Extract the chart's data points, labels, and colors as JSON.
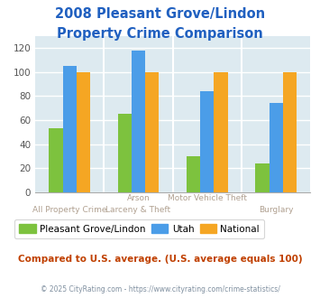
{
  "title_line1": "2008 Pleasant Grove/Lindon",
  "title_line2": "Property Crime Comparison",
  "cat_labels_top": [
    "",
    "Arson",
    "Motor Vehicle Theft",
    ""
  ],
  "cat_labels_bottom": [
    "All Property Crime",
    "Larceny & Theft",
    "",
    "Burglary"
  ],
  "pleasant_grove": [
    53,
    65,
    30,
    24
  ],
  "utah": [
    105,
    118,
    84,
    74
  ],
  "national": [
    100,
    100,
    100,
    100
  ],
  "colors": {
    "pleasant_grove": "#7dc23e",
    "utah": "#4b9de8",
    "national": "#f5a623"
  },
  "ylim": [
    0,
    130
  ],
  "yticks": [
    0,
    20,
    40,
    60,
    80,
    100,
    120
  ],
  "title_color": "#2060c0",
  "plot_bg": "#ddeaf0",
  "label_color": "#b0a090",
  "subtitle": "Compared to U.S. average. (U.S. average equals 100)",
  "subtitle_color": "#c04000",
  "footnote": "© 2025 CityRating.com - https://www.cityrating.com/crime-statistics/",
  "footnote_color": "#8090a0",
  "legend_labels": [
    "Pleasant Grove/Lindon",
    "Utah",
    "National"
  ]
}
